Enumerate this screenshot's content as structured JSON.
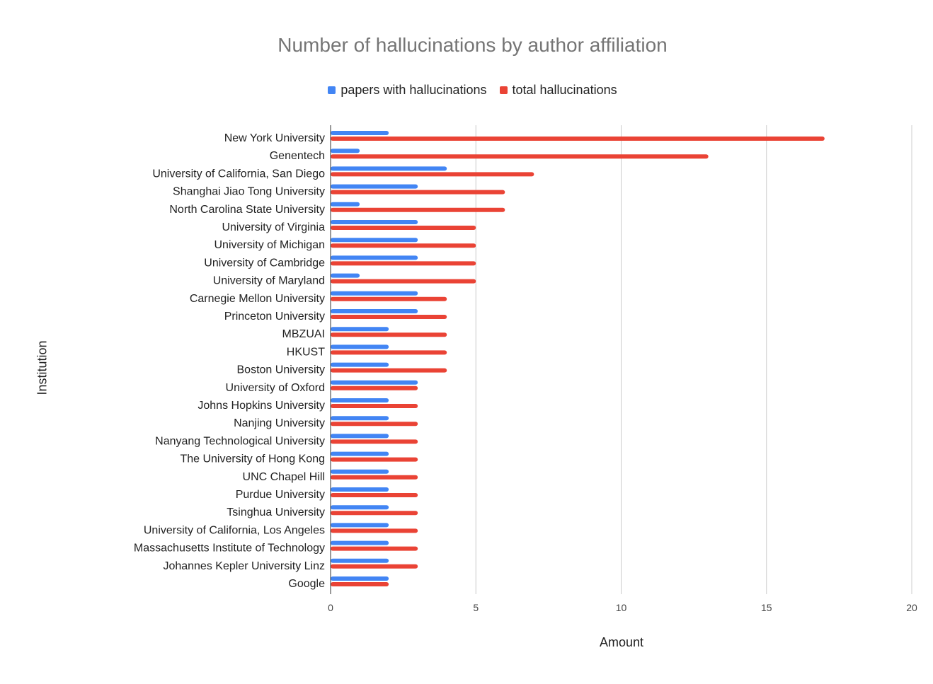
{
  "chart_data": {
    "type": "bar",
    "orientation": "horizontal",
    "title": "Number of hallucinations by author affiliation",
    "xlabel": "Amount",
    "ylabel": "Institution",
    "xlim": [
      0,
      20
    ],
    "xticks": [
      0,
      5,
      10,
      15,
      20
    ],
    "grid": true,
    "legend_position": "top",
    "categories": [
      "New York University",
      "Genentech",
      "University of California, San Diego",
      "Shanghai Jiao Tong University",
      "North Carolina State University",
      "University of Virginia",
      "University of Michigan",
      "University of Cambridge",
      "University of Maryland",
      "Carnegie Mellon University",
      "Princeton University",
      "MBZUAI",
      "HKUST",
      "Boston University",
      "University of Oxford",
      "Johns Hopkins University",
      "Nanjing University",
      "Nanyang Technological University",
      "The University of Hong Kong",
      "UNC Chapel Hill",
      "Purdue University",
      "Tsinghua University",
      "University of California, Los Angeles",
      "Massachusetts Institute of Technology",
      "Johannes Kepler University Linz",
      "Google"
    ],
    "series": [
      {
        "name": "papers with hallucinations",
        "color": "#4285f4",
        "values": [
          2,
          1,
          4,
          3,
          1,
          3,
          3,
          3,
          1,
          3,
          3,
          2,
          2,
          2,
          3,
          2,
          2,
          2,
          2,
          2,
          2,
          2,
          2,
          2,
          2,
          2
        ]
      },
      {
        "name": "total hallucinations",
        "color": "#ea4335",
        "values": [
          17,
          13,
          7,
          6,
          6,
          5,
          5,
          5,
          5,
          4,
          4,
          4,
          4,
          4,
          3,
          3,
          3,
          3,
          3,
          3,
          3,
          3,
          3,
          3,
          3,
          2
        ]
      }
    ]
  },
  "colors": {
    "title": "#757575",
    "grid": "#cccccc",
    "axis": "#333333"
  }
}
